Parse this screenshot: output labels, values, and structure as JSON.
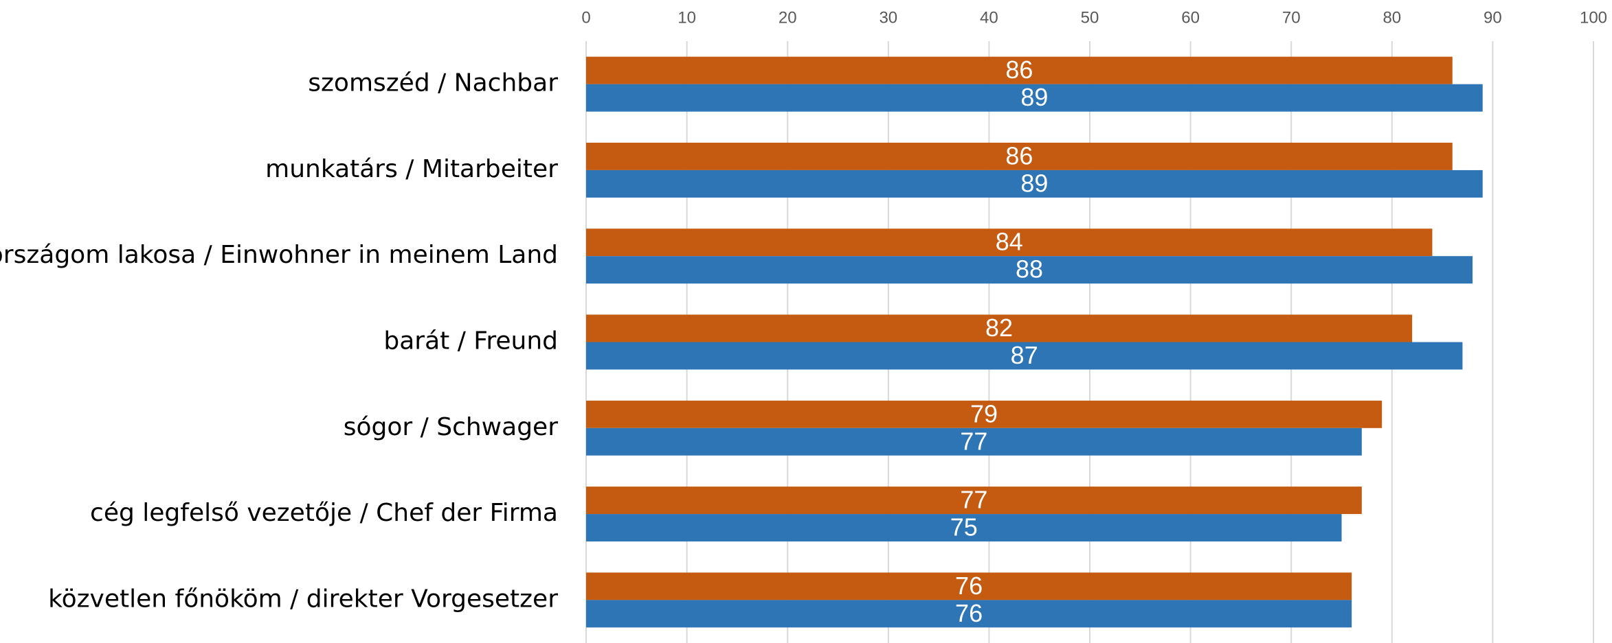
{
  "chart_data": {
    "type": "hbar",
    "categories": [
      "szomszéd / Nachbar",
      "munkatárs / Mitarbeiter",
      "országom lakosa / Einwohner in meinem Land",
      "barát / Freund",
      "sógor / Schwager",
      "cég legfelső vezetője / Chef der Firma",
      "közvetlen főnököm / direkter Vorgesetzer"
    ],
    "series": [
      {
        "color": "#c55a11",
        "values": [
          86,
          86,
          84,
          82,
          79,
          77,
          76
        ]
      },
      {
        "color": "#2e75b6",
        "values": [
          89,
          89,
          88,
          87,
          77,
          75,
          76
        ]
      }
    ],
    "xlim": [
      0,
      100
    ],
    "xticks": [
      0,
      10,
      20,
      30,
      40,
      50,
      60,
      70,
      80,
      90,
      100
    ],
    "grid": true
  }
}
